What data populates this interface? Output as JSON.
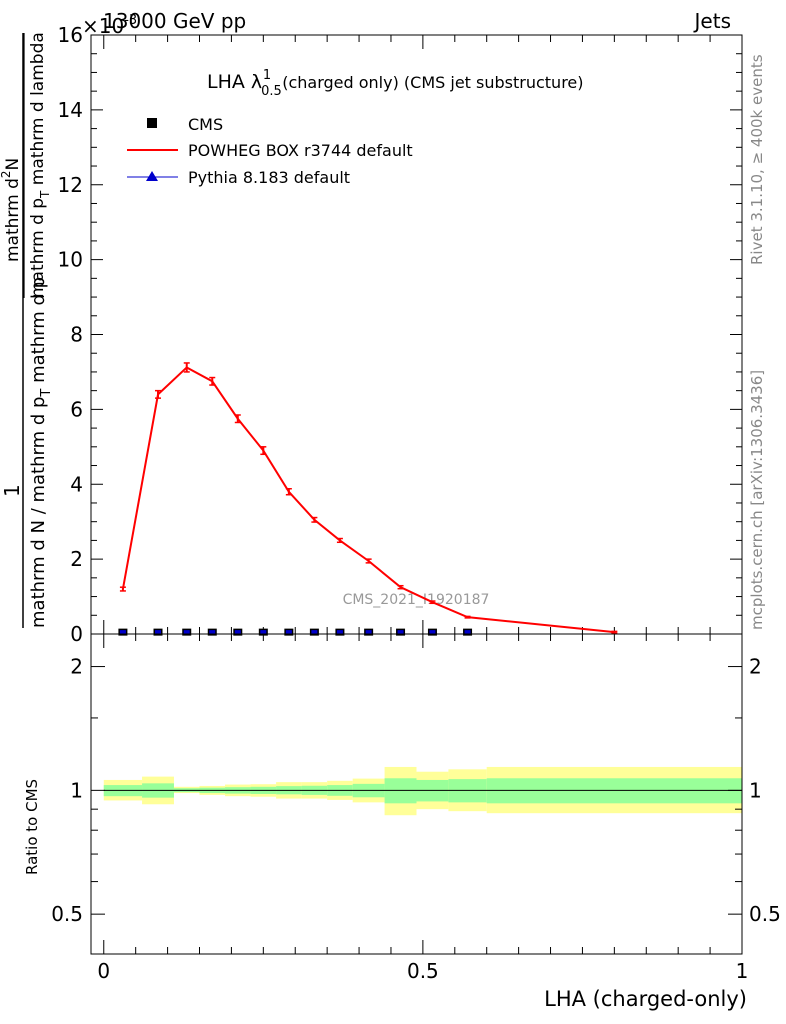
{
  "header": {
    "energy_label": "13000 GeV pp",
    "exponent_label": "×10",
    "exponent_power": "-3",
    "process_label": "Jets"
  },
  "side": {
    "rivet_label": "Rivet 3.1.10, ≥ 400k events",
    "mcplots_label": "mcplots.cern.ch [arXiv:1306.3436]"
  },
  "watermark": "CMS_2021_I1920187",
  "chart_data": [
    {
      "type": "line",
      "panel": "main",
      "title": {
        "prefix": "LHA λ",
        "sup": "1",
        "sub": "0.5",
        "suffix": " (charged only) (CMS jet substructure)"
      },
      "ylabel": {
        "one": "1",
        "den_left": "mathrm d N / mathrm d p",
        "den_sub": "T",
        "den_right": " mathrm d p",
        "num": "mathrm d",
        "num_sup": "2",
        "num_end": "N",
        "den2": "mathrm d p",
        "den2_sub": "T",
        "den2_end": " mathrm d lambda"
      },
      "ylim": [
        0,
        16
      ],
      "xlim": [
        -0.02,
        1.0
      ],
      "y_ticks": [
        {
          "v": 0,
          "label": "0"
        },
        {
          "v": 2,
          "label": "2"
        },
        {
          "v": 4,
          "label": "4"
        },
        {
          "v": 6,
          "label": "6"
        },
        {
          "v": 8,
          "label": "8"
        },
        {
          "v": 10,
          "label": "10"
        },
        {
          "v": 12,
          "label": "12"
        },
        {
          "v": 14,
          "label": "14"
        },
        {
          "v": 16,
          "label": "16"
        }
      ],
      "legend": [
        {
          "name": "CMS",
          "color": "#000000",
          "style": "square"
        },
        {
          "name": "POWHEG BOX r3744 default",
          "color": "#ff0000",
          "style": "line"
        },
        {
          "name": "Pythia 8.183 default",
          "color": "#0000cc",
          "style": "triangle"
        }
      ],
      "series": [
        {
          "name": "CMS",
          "color": "#000000",
          "x": [
            0.03,
            0.085,
            0.13,
            0.17,
            0.21,
            0.25,
            0.29,
            0.33,
            0.37,
            0.415,
            0.465,
            0.515,
            0.57
          ],
          "y": [
            0.01,
            0.01,
            0.01,
            0.01,
            0.01,
            0.01,
            0.01,
            0.01,
            0.01,
            0.01,
            0.01,
            0.01,
            0.01
          ]
        },
        {
          "name": "POWHEG BOX r3744 default",
          "color": "#ff0000",
          "x": [
            0.03,
            0.085,
            0.13,
            0.17,
            0.21,
            0.25,
            0.29,
            0.33,
            0.37,
            0.415,
            0.465,
            0.515,
            0.57,
            0.8
          ],
          "y": [
            1.2,
            6.4,
            7.12,
            6.75,
            5.75,
            4.9,
            3.8,
            3.05,
            2.5,
            1.95,
            1.25,
            0.85,
            0.45,
            0.05
          ],
          "err": [
            0.05,
            0.1,
            0.12,
            0.1,
            0.1,
            0.1,
            0.08,
            0.06,
            0.05,
            0.05,
            0.04,
            0.03,
            0.02,
            0.02
          ]
        }
      ]
    },
    {
      "type": "area",
      "panel": "ratio",
      "ylabel": "Ratio to CMS",
      "xlabel": "LHA (charged-only)",
      "ylim": [
        0.4,
        2.4
      ],
      "yscale": "log",
      "xlim": [
        -0.02,
        1.0
      ],
      "x_ticks": [
        {
          "v": 0,
          "label": "0"
        },
        {
          "v": 0.5,
          "label": "0.5"
        },
        {
          "v": 1,
          "label": "1"
        }
      ],
      "y_ticks": [
        {
          "v": 0.5,
          "label": "0.5"
        },
        {
          "v": 1,
          "label": "1"
        },
        {
          "v": 2,
          "label": "2"
        }
      ],
      "reference": 1,
      "bins": [
        {
          "x0": 0.0,
          "x1": 0.06,
          "inner": [
            0.968,
            1.03
          ],
          "outer": [
            0.945,
            1.06
          ]
        },
        {
          "x0": 0.06,
          "x1": 0.11,
          "inner": [
            0.96,
            1.04
          ],
          "outer": [
            0.925,
            1.08
          ]
        },
        {
          "x0": 0.11,
          "x1": 0.15,
          "inner": [
            0.99,
            1.012
          ],
          "outer": [
            0.985,
            1.02
          ]
        },
        {
          "x0": 0.15,
          "x1": 0.19,
          "inner": [
            0.985,
            1.015
          ],
          "outer": [
            0.975,
            1.025
          ]
        },
        {
          "x0": 0.19,
          "x1": 0.23,
          "inner": [
            0.982,
            1.018
          ],
          "outer": [
            0.968,
            1.033
          ]
        },
        {
          "x0": 0.23,
          "x1": 0.27,
          "inner": [
            0.98,
            1.02
          ],
          "outer": [
            0.965,
            1.035
          ]
        },
        {
          "x0": 0.27,
          "x1": 0.31,
          "inner": [
            0.978,
            1.024
          ],
          "outer": [
            0.955,
            1.047
          ]
        },
        {
          "x0": 0.31,
          "x1": 0.35,
          "inner": [
            0.975,
            1.026
          ],
          "outer": [
            0.955,
            1.047
          ]
        },
        {
          "x0": 0.35,
          "x1": 0.39,
          "inner": [
            0.97,
            1.03
          ],
          "outer": [
            0.948,
            1.055
          ]
        },
        {
          "x0": 0.39,
          "x1": 0.44,
          "inner": [
            0.962,
            1.037
          ],
          "outer": [
            0.935,
            1.068
          ]
        },
        {
          "x0": 0.44,
          "x1": 0.49,
          "inner": [
            0.93,
            1.07
          ],
          "outer": [
            0.87,
            1.14
          ]
        },
        {
          "x0": 0.49,
          "x1": 0.54,
          "inner": [
            0.94,
            1.06
          ],
          "outer": [
            0.9,
            1.11
          ]
        },
        {
          "x0": 0.54,
          "x1": 0.6,
          "inner": [
            0.935,
            1.065
          ],
          "outer": [
            0.89,
            1.125
          ]
        },
        {
          "x0": 0.6,
          "x1": 1.0,
          "inner": [
            0.93,
            1.07
          ],
          "outer": [
            0.88,
            1.14
          ]
        }
      ],
      "band_colors": {
        "inner": "#99ff99",
        "outer": "#ffff99"
      }
    }
  ]
}
